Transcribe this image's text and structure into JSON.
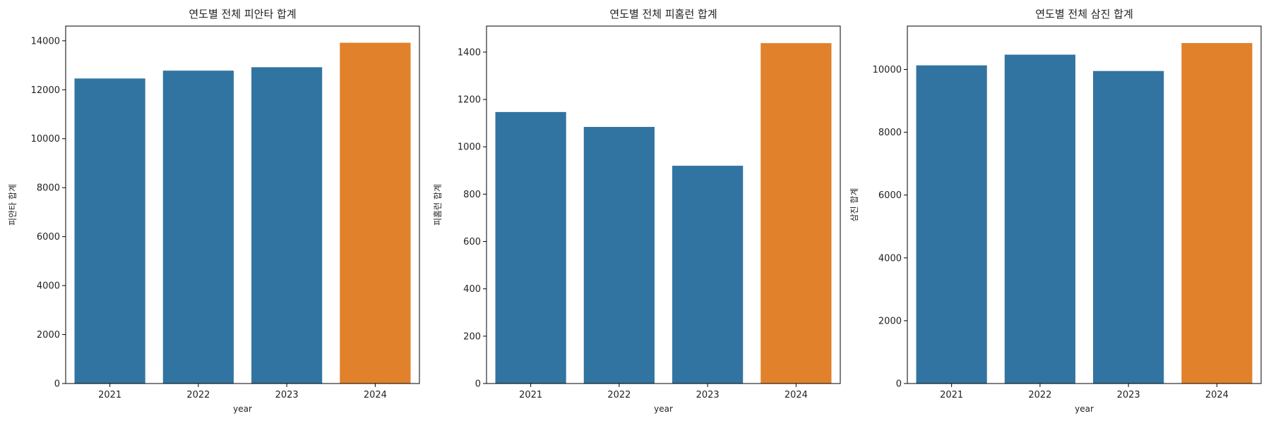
{
  "colors": {
    "default_bar": "#3274a1",
    "highlight_bar": "#e1812c",
    "axis": "#000000"
  },
  "chart_data": [
    {
      "type": "bar",
      "title": "연도별 전체 피안타 합계",
      "xlabel": "year",
      "ylabel": "피안타 합계",
      "categories": [
        "2021",
        "2022",
        "2023",
        "2024"
      ],
      "values": [
        12460,
        12780,
        12920,
        13920
      ],
      "ylim": [
        0,
        14600
      ],
      "yticks": [
        0,
        2000,
        4000,
        6000,
        8000,
        10000,
        12000,
        14000
      ],
      "ytick_labels": [
        "0",
        "2000",
        "4000",
        "6000",
        "8000",
        "10000",
        "12000",
        "14000"
      ],
      "highlight_index": 3,
      "grid": false
    },
    {
      "type": "bar",
      "title": "연도별 전체 피홈런 합계",
      "xlabel": "year",
      "ylabel": "피홈런 합계",
      "categories": [
        "2021",
        "2022",
        "2023",
        "2024"
      ],
      "values": [
        1147,
        1084,
        920,
        1438
      ],
      "ylim": [
        0,
        1510
      ],
      "yticks": [
        0,
        200,
        400,
        600,
        800,
        1000,
        1200,
        1400
      ],
      "ytick_labels": [
        "0",
        "200",
        "400",
        "600",
        "800",
        "1000",
        "1200",
        "1400"
      ],
      "highlight_index": 3,
      "grid": false
    },
    {
      "type": "bar",
      "title": "연도별 전체 삼진 합계",
      "xlabel": "year",
      "ylabel": "삼진 합계",
      "categories": [
        "2021",
        "2022",
        "2023",
        "2024"
      ],
      "values": [
        10130,
        10470,
        9950,
        10840
      ],
      "ylim": [
        0,
        11380
      ],
      "yticks": [
        0,
        2000,
        4000,
        6000,
        8000,
        10000
      ],
      "ytick_labels": [
        "0",
        "2000",
        "4000",
        "6000",
        "8000",
        "10000"
      ],
      "highlight_index": 3,
      "grid": false
    }
  ]
}
